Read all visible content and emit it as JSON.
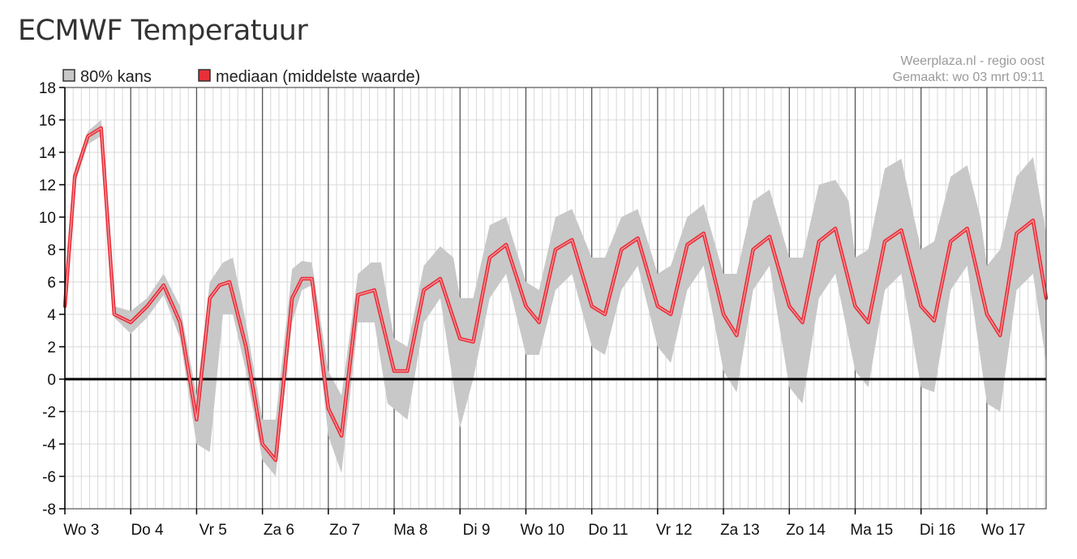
{
  "page": {
    "title": "ECMWF Temperatuur",
    "source_line1": "Weerplaza.nl - regio oost",
    "source_line2": "Gemaakt: wo 03 mrt 09:11"
  },
  "colors": {
    "band": "#c8c8c8",
    "median": "#e8303a",
    "median_highlight": "#f7a0a6",
    "zero_line": "#000000",
    "grid_minor": "#d8d8d8",
    "grid_day": "#555555"
  },
  "chart_data": {
    "type": "area",
    "title": "ECMWF Temperatuur",
    "xlabel": "",
    "ylabel": "",
    "ylim": [
      -8,
      18
    ],
    "yticks": [
      18,
      16,
      14,
      12,
      10,
      8,
      6,
      4,
      2,
      0,
      -2,
      -4,
      -6,
      -8
    ],
    "x_unit": "days since Wo 3 00:00",
    "xlim": [
      0,
      14.9
    ],
    "categories": [
      "Wo 3",
      "Do 4",
      "Vr 5",
      "Za 6",
      "Zo 7",
      "Ma 8",
      "Di 9",
      "Wo 10",
      "Do 11",
      "Vr 12",
      "Za 13",
      "Zo 14",
      "Ma 15",
      "Di 16",
      "Wo 17"
    ],
    "grid": true,
    "legend_position": "top-left",
    "legend": [
      "80% kans",
      "mediaan (middelste waarde)"
    ],
    "series": [
      {
        "name": "mediaan (middelste waarde)",
        "points": [
          [
            0.0,
            4.5
          ],
          [
            0.15,
            12.5
          ],
          [
            0.35,
            15.0
          ],
          [
            0.55,
            15.5
          ],
          [
            0.75,
            4.0
          ],
          [
            1.0,
            3.5
          ],
          [
            1.25,
            4.5
          ],
          [
            1.5,
            5.8
          ],
          [
            1.75,
            3.5
          ],
          [
            2.0,
            -2.5
          ],
          [
            2.2,
            5.0
          ],
          [
            2.35,
            5.8
          ],
          [
            2.5,
            6.0
          ],
          [
            2.75,
            2.0
          ],
          [
            3.0,
            -4.0
          ],
          [
            3.2,
            -5.0
          ],
          [
            3.45,
            5.0
          ],
          [
            3.6,
            6.2
          ],
          [
            3.75,
            6.2
          ],
          [
            4.0,
            -1.8
          ],
          [
            4.2,
            -3.5
          ],
          [
            4.45,
            5.2
          ],
          [
            4.7,
            5.5
          ],
          [
            5.0,
            0.5
          ],
          [
            5.2,
            0.5
          ],
          [
            5.45,
            5.5
          ],
          [
            5.7,
            6.2
          ],
          [
            6.0,
            2.5
          ],
          [
            6.2,
            2.3
          ],
          [
            6.45,
            7.5
          ],
          [
            6.7,
            8.3
          ],
          [
            7.0,
            4.5
          ],
          [
            7.2,
            3.5
          ],
          [
            7.45,
            8.0
          ],
          [
            7.7,
            8.6
          ],
          [
            8.0,
            4.5
          ],
          [
            8.2,
            4.0
          ],
          [
            8.45,
            8.0
          ],
          [
            8.7,
            8.7
          ],
          [
            9.0,
            4.5
          ],
          [
            9.2,
            4.0
          ],
          [
            9.45,
            8.3
          ],
          [
            9.7,
            9.0
          ],
          [
            10.0,
            4.0
          ],
          [
            10.2,
            2.7
          ],
          [
            10.45,
            8.0
          ],
          [
            10.7,
            8.8
          ],
          [
            11.0,
            4.5
          ],
          [
            11.2,
            3.5
          ],
          [
            11.45,
            8.5
          ],
          [
            11.7,
            9.3
          ],
          [
            12.0,
            4.5
          ],
          [
            12.2,
            3.5
          ],
          [
            12.45,
            8.5
          ],
          [
            12.7,
            9.2
          ],
          [
            13.0,
            4.5
          ],
          [
            13.2,
            3.6
          ],
          [
            13.45,
            8.5
          ],
          [
            13.7,
            9.3
          ],
          [
            14.0,
            4.0
          ],
          [
            14.2,
            2.7
          ],
          [
            14.45,
            9.0
          ],
          [
            14.7,
            9.8
          ],
          [
            14.9,
            5.0
          ]
        ]
      },
      {
        "name": "80% kans",
        "points_upper": [
          [
            0.0,
            5.0
          ],
          [
            0.15,
            13.0
          ],
          [
            0.35,
            15.3
          ],
          [
            0.55,
            16.0
          ],
          [
            0.75,
            4.5
          ],
          [
            1.0,
            4.2
          ],
          [
            1.25,
            5.0
          ],
          [
            1.5,
            6.5
          ],
          [
            1.75,
            4.5
          ],
          [
            2.0,
            -1.0
          ],
          [
            2.2,
            6.0
          ],
          [
            2.4,
            7.2
          ],
          [
            2.55,
            7.5
          ],
          [
            2.75,
            3.5
          ],
          [
            3.0,
            -2.5
          ],
          [
            3.2,
            -2.5
          ],
          [
            3.45,
            6.8
          ],
          [
            3.6,
            7.3
          ],
          [
            3.75,
            7.2
          ],
          [
            4.0,
            0.5
          ],
          [
            4.2,
            -1.0
          ],
          [
            4.45,
            6.5
          ],
          [
            4.65,
            7.2
          ],
          [
            4.8,
            7.2
          ],
          [
            5.0,
            2.5
          ],
          [
            5.2,
            2.0
          ],
          [
            5.45,
            7.0
          ],
          [
            5.7,
            8.2
          ],
          [
            5.9,
            7.5
          ],
          [
            6.0,
            5.0
          ],
          [
            6.2,
            5.0
          ],
          [
            6.45,
            9.5
          ],
          [
            6.7,
            10.0
          ],
          [
            7.0,
            6.0
          ],
          [
            7.2,
            5.5
          ],
          [
            7.45,
            10.0
          ],
          [
            7.7,
            10.5
          ],
          [
            8.0,
            7.5
          ],
          [
            8.2,
            7.5
          ],
          [
            8.45,
            10.0
          ],
          [
            8.7,
            10.5
          ],
          [
            9.0,
            6.5
          ],
          [
            9.2,
            7.0
          ],
          [
            9.45,
            10.0
          ],
          [
            9.7,
            10.8
          ],
          [
            10.0,
            6.5
          ],
          [
            10.2,
            6.5
          ],
          [
            10.45,
            11.0
          ],
          [
            10.7,
            11.7
          ],
          [
            11.0,
            7.5
          ],
          [
            11.2,
            7.5
          ],
          [
            11.45,
            12.0
          ],
          [
            11.7,
            12.3
          ],
          [
            11.9,
            11.0
          ],
          [
            12.0,
            7.5
          ],
          [
            12.2,
            8.0
          ],
          [
            12.45,
            13.0
          ],
          [
            12.7,
            13.6
          ],
          [
            13.0,
            8.0
          ],
          [
            13.2,
            8.5
          ],
          [
            13.45,
            12.5
          ],
          [
            13.7,
            13.2
          ],
          [
            13.9,
            10.0
          ],
          [
            14.0,
            7.0
          ],
          [
            14.2,
            8.0
          ],
          [
            14.45,
            12.5
          ],
          [
            14.7,
            13.7
          ],
          [
            14.9,
            9.0
          ]
        ],
        "points_lower": [
          [
            0.0,
            3.8
          ],
          [
            0.15,
            12.0
          ],
          [
            0.35,
            14.5
          ],
          [
            0.55,
            15.0
          ],
          [
            0.75,
            3.8
          ],
          [
            1.0,
            2.8
          ],
          [
            1.25,
            3.8
          ],
          [
            1.5,
            5.2
          ],
          [
            1.75,
            2.5
          ],
          [
            2.0,
            -4.0
          ],
          [
            2.2,
            -4.5
          ],
          [
            2.4,
            4.0
          ],
          [
            2.55,
            4.0
          ],
          [
            2.75,
            0.5
          ],
          [
            3.0,
            -5.0
          ],
          [
            3.2,
            -6.0
          ],
          [
            3.45,
            3.5
          ],
          [
            3.6,
            5.5
          ],
          [
            3.75,
            5.8
          ],
          [
            4.0,
            -3.5
          ],
          [
            4.2,
            -5.8
          ],
          [
            4.45,
            3.5
          ],
          [
            4.7,
            3.5
          ],
          [
            4.9,
            -1.5
          ],
          [
            5.2,
            -2.5
          ],
          [
            5.45,
            3.5
          ],
          [
            5.7,
            5.0
          ],
          [
            6.0,
            -3.0
          ],
          [
            6.2,
            0.0
          ],
          [
            6.45,
            5.0
          ],
          [
            6.7,
            6.5
          ],
          [
            7.0,
            1.5
          ],
          [
            7.2,
            1.5
          ],
          [
            7.45,
            5.5
          ],
          [
            7.7,
            6.5
          ],
          [
            8.0,
            2.0
          ],
          [
            8.2,
            1.5
          ],
          [
            8.45,
            5.5
          ],
          [
            8.7,
            7.0
          ],
          [
            9.0,
            2.0
          ],
          [
            9.2,
            1.0
          ],
          [
            9.45,
            5.5
          ],
          [
            9.7,
            7.0
          ],
          [
            10.0,
            0.5
          ],
          [
            10.2,
            -0.8
          ],
          [
            10.45,
            5.5
          ],
          [
            10.7,
            7.0
          ],
          [
            11.0,
            -0.5
          ],
          [
            11.2,
            -1.5
          ],
          [
            11.45,
            5.0
          ],
          [
            11.7,
            6.5
          ],
          [
            12.0,
            0.5
          ],
          [
            12.2,
            -0.5
          ],
          [
            12.45,
            5.5
          ],
          [
            12.7,
            6.5
          ],
          [
            13.0,
            -0.5
          ],
          [
            13.2,
            -0.8
          ],
          [
            13.45,
            5.5
          ],
          [
            13.7,
            7.0
          ],
          [
            14.0,
            -1.5
          ],
          [
            14.2,
            -2.0
          ],
          [
            14.45,
            5.5
          ],
          [
            14.7,
            6.5
          ],
          [
            14.9,
            1.0
          ]
        ]
      }
    ]
  }
}
